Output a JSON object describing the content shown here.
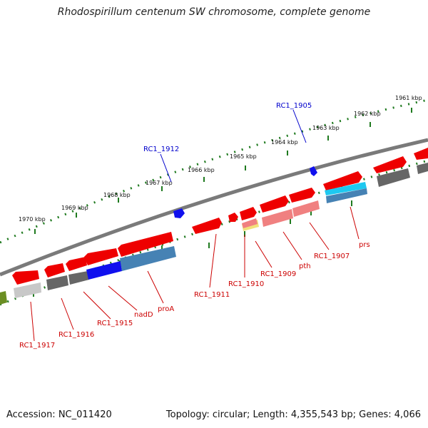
{
  "title": "Rhodospirillum centenum SW chromosome, complete genome",
  "footer": {
    "accession": "Accession: NC_011420",
    "summary": "Topology: circular; Length: 4,355,543 bp; Genes: 4,066"
  },
  "colors": {
    "backbone": "#7a7a7a",
    "gene_red": "#ee0000",
    "gene_pink": "#f08080",
    "gene_gray": "#666666",
    "gene_lightgray": "#c8c8c8",
    "gene_blue": "#1010ee",
    "gene_steelblue": "#4682b4",
    "gene_cyan": "#1ec8f0",
    "gene_olive": "#6b8e23",
    "ruler": "#1f7a1f",
    "label_red": "#cc0000",
    "label_blue": "#0000cc"
  },
  "scale_labels": [
    "1970 kbp",
    "1969 kbp",
    "1968 kbp",
    "1967 kbp",
    "1966 kbp",
    "1965 kbp",
    "1964 kbp",
    "1963 kbp",
    "1962 kbp",
    "1961 kbp"
  ],
  "outer_labels": [
    "RC1_1912",
    "RC1_1905"
  ],
  "inner_labels": [
    "RC1_1917",
    "RC1_1916",
    "RC1_1915",
    "nadD",
    "proA",
    "RC1_1911",
    "RC1_1910",
    "RC1_1909",
    "pth",
    "RC1_1907",
    "prs"
  ]
}
